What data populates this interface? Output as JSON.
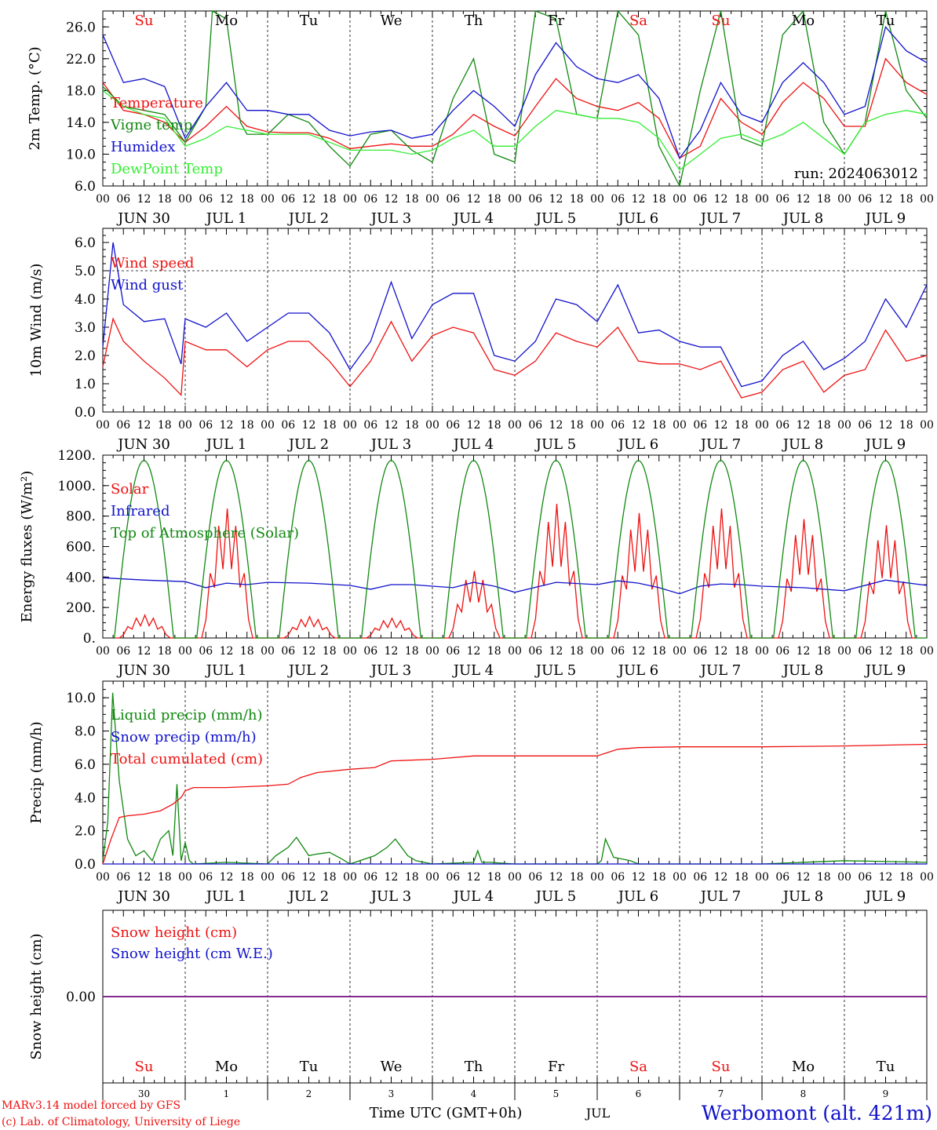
{
  "run_label": "run: 2024063012",
  "hour_ticks": [
    "00",
    "06",
    "12",
    "18"
  ],
  "day_labels": [
    "JUN 30",
    "JUL  1",
    "JUL  2",
    "JUL  3",
    "JUL  4",
    "JUL  5",
    "JUL  6",
    "JUL  7",
    "JUL  8",
    "JUL  9"
  ],
  "weekdays": [
    {
      "label": "Su",
      "color": "#ee1111"
    },
    {
      "label": "Mo",
      "color": "#000000"
    },
    {
      "label": "Tu",
      "color": "#000000"
    },
    {
      "label": "We",
      "color": "#000000"
    },
    {
      "label": "Th",
      "color": "#000000"
    },
    {
      "label": "Fr",
      "color": "#000000"
    },
    {
      "label": "Sa",
      "color": "#ee1111"
    },
    {
      "label": "Su",
      "color": "#ee1111"
    },
    {
      "label": "Mo",
      "color": "#000000"
    },
    {
      "label": "Tu",
      "color": "#000000"
    }
  ],
  "bottom_day_numbers": [
    "30",
    "1",
    "2",
    "3",
    "4",
    "5",
    "6",
    "7",
    "8",
    "9"
  ],
  "footer": {
    "model": "MARv3.14 model forced by GFS",
    "copyright": "(c) Lab. of Climatology, University of Liege",
    "time_axis": "Time UTC (GMT+0h)",
    "month": "JUL",
    "station": "Werbomont (alt. 421m)"
  },
  "colors": {
    "red": "#ee1111",
    "green": "#118811",
    "blue": "#1111cc",
    "lightgreen": "#33ee33",
    "purple": "#882288"
  },
  "chart_data": [
    {
      "id": "temp",
      "type": "line",
      "ylabel": "2m Temp. (°C)",
      "ylim": [
        6,
        28
      ],
      "yticks": [
        "6.0",
        "10.0",
        "14.0",
        "18.0",
        "22.0",
        "26.0"
      ],
      "ytick_values": [
        6,
        10,
        14,
        18,
        22,
        26
      ],
      "x_days": [
        0,
        10
      ],
      "series": [
        {
          "name": "Temperature",
          "color": "#ee1111",
          "x": [
            0,
            0.25,
            0.5,
            0.75,
            1,
            1.25,
            1.5,
            1.75,
            2,
            2.25,
            2.5,
            2.75,
            3,
            3.25,
            3.5,
            3.75,
            4,
            4.25,
            4.5,
            4.75,
            5,
            5.25,
            5.5,
            5.75,
            6,
            6.25,
            6.5,
            6.75,
            7,
            7.25,
            7.5,
            7.75,
            8,
            8.25,
            8.5,
            8.75,
            9,
            9.25,
            9.5,
            9.75,
            10
          ],
          "y": [
            19,
            15.5,
            15,
            14,
            11.5,
            13.5,
            16,
            13.5,
            12.8,
            12.7,
            12.7,
            12,
            10.7,
            11,
            11.3,
            11,
            11,
            12.5,
            15,
            13.5,
            12.3,
            16,
            19.5,
            17,
            16,
            15.5,
            16.5,
            14.5,
            9.5,
            11,
            17,
            14,
            12.5,
            16.5,
            19,
            17,
            13.5,
            13.5,
            22,
            19,
            17.5
          ]
        },
        {
          "name": "Vigne temp",
          "color": "#118811",
          "x": [
            0,
            0.25,
            0.5,
            0.75,
            1,
            1.25,
            1.33,
            1.5,
            1.67,
            1.75,
            2,
            2.25,
            2.5,
            2.75,
            3,
            3.25,
            3.5,
            3.75,
            4,
            4.25,
            4.5,
            4.75,
            5,
            5.25,
            5.5,
            5.75,
            6,
            6.25,
            6.5,
            6.75,
            7,
            7.25,
            7.5,
            7.75,
            8,
            8.25,
            8.5,
            8.75,
            9,
            9.25,
            9.5,
            9.75,
            10
          ],
          "y": [
            18.5,
            16,
            15.5,
            15,
            11.5,
            16,
            28,
            27,
            14,
            12.5,
            12.5,
            15,
            14,
            11,
            8.5,
            12.5,
            13,
            10.5,
            9,
            17,
            22,
            10,
            9,
            28,
            27,
            15,
            14.5,
            28,
            25,
            11,
            6,
            18,
            28,
            12,
            11,
            25,
            28,
            14,
            10,
            14,
            28,
            18,
            14.5
          ]
        },
        {
          "name": "Humidex",
          "color": "#1111cc",
          "x": [
            0,
            0.25,
            0.5,
            0.75,
            1,
            1.25,
            1.5,
            1.75,
            2,
            2.25,
            2.5,
            2.75,
            3,
            3.25,
            3.5,
            3.75,
            4,
            4.25,
            4.5,
            4.75,
            5,
            5.25,
            5.5,
            5.75,
            6,
            6.25,
            6.5,
            6.75,
            7,
            7.25,
            7.5,
            7.75,
            8,
            8.25,
            8.5,
            8.75,
            9,
            9.25,
            9.5,
            9.75,
            10
          ],
          "y": [
            25,
            19,
            19.5,
            18.5,
            12,
            16,
            19,
            15.5,
            15.5,
            15,
            15,
            13,
            12.3,
            12.8,
            13,
            12,
            12.5,
            15.5,
            18,
            16,
            13.5,
            20,
            24,
            21,
            19.5,
            19,
            20,
            17,
            9.5,
            13,
            19,
            15,
            14,
            19,
            21.5,
            19,
            15,
            16,
            26,
            23,
            21.5
          ]
        },
        {
          "name": "DewPoint Temp",
          "color": "#33ee33",
          "x": [
            0,
            0.25,
            0.5,
            0.75,
            1,
            1.25,
            1.5,
            1.75,
            2,
            2.25,
            2.5,
            2.75,
            3,
            3.25,
            3.5,
            3.75,
            4,
            4.25,
            4.5,
            4.75,
            5,
            5.25,
            5.5,
            5.75,
            6,
            6.25,
            6.5,
            6.75,
            7,
            7.25,
            7.5,
            7.75,
            8,
            8.25,
            8.5,
            8.75,
            9,
            9.25,
            9.5,
            9.75,
            10
          ],
          "y": [
            18,
            16,
            15,
            14.5,
            11,
            12,
            13.5,
            13,
            12.5,
            12.5,
            12.5,
            11.5,
            10.5,
            10.5,
            10.5,
            10,
            10.5,
            12,
            13,
            11,
            11,
            13.5,
            15.5,
            15,
            14.5,
            14.5,
            14,
            12,
            8,
            10,
            12,
            12.5,
            11.5,
            12.5,
            14,
            12,
            10,
            14,
            15,
            15.5,
            15
          ]
        }
      ]
    },
    {
      "id": "wind",
      "type": "line",
      "ylabel": "10m Wind (m/s)",
      "ylim": [
        0,
        6.5
      ],
      "yticks": [
        "0.0",
        "1.0",
        "2.0",
        "3.0",
        "4.0",
        "5.0",
        "6.0"
      ],
      "ytick_values": [
        0,
        1,
        2,
        3,
        4,
        5,
        6
      ],
      "ref_line": 5,
      "x_days": [
        0,
        10
      ],
      "series": [
        {
          "name": "Wind speed",
          "color": "#ee1111",
          "x": [
            0,
            0.125,
            0.25,
            0.5,
            0.75,
            0.95,
            1,
            1.25,
            1.5,
            1.75,
            2,
            2.25,
            2.5,
            2.75,
            3,
            3.25,
            3.5,
            3.75,
            4,
            4.25,
            4.5,
            4.75,
            5,
            5.25,
            5.5,
            5.75,
            6,
            6.25,
            6.5,
            6.75,
            7,
            7.25,
            7.5,
            7.75,
            8,
            8.25,
            8.5,
            8.75,
            9,
            9.25,
            9.5,
            9.75,
            10
          ],
          "y": [
            1.6,
            3.3,
            2.5,
            1.8,
            1.2,
            0.6,
            2.5,
            2.2,
            2.2,
            1.6,
            2.2,
            2.5,
            2.5,
            1.8,
            0.9,
            1.8,
            3.2,
            1.8,
            2.7,
            3,
            2.8,
            1.5,
            1.3,
            1.8,
            2.8,
            2.5,
            2.3,
            3,
            1.8,
            1.7,
            1.7,
            1.5,
            1.8,
            0.5,
            0.7,
            1.5,
            1.8,
            0.7,
            1.3,
            1.5,
            2.9,
            1.8,
            2.0
          ]
        },
        {
          "name": "Wind gust",
          "color": "#1111cc",
          "x": [
            0,
            0.125,
            0.25,
            0.5,
            0.75,
            0.95,
            1,
            1.25,
            1.5,
            1.75,
            2,
            2.25,
            2.5,
            2.75,
            3,
            3.25,
            3.5,
            3.75,
            4,
            4.25,
            4.5,
            4.75,
            5,
            5.25,
            5.5,
            5.75,
            6,
            6.25,
            6.5,
            6.75,
            7,
            7.25,
            7.5,
            7.75,
            8,
            8.25,
            8.5,
            8.75,
            9,
            9.25,
            9.5,
            9.75,
            10
          ],
          "y": [
            2.3,
            6.0,
            3.8,
            3.2,
            3.3,
            1.7,
            3.3,
            3,
            3.5,
            2.5,
            3,
            3.5,
            3.5,
            2.8,
            1.5,
            2.5,
            4.6,
            2.6,
            3.8,
            4.2,
            4.2,
            2.0,
            1.8,
            2.5,
            4.0,
            3.8,
            3.2,
            4.5,
            2.8,
            2.9,
            2.5,
            2.3,
            2.3,
            0.9,
            1.1,
            2.0,
            2.5,
            1.5,
            1.9,
            2.5,
            4.0,
            3.0,
            4.5
          ]
        }
      ]
    },
    {
      "id": "energy",
      "type": "line",
      "ylabel": "Energy fluxes (W/m²)",
      "ylim": [
        0,
        1200
      ],
      "yticks": [
        "0.",
        "200.",
        "400.",
        "600.",
        "800.",
        "1000.",
        "1200."
      ],
      "ytick_values": [
        0,
        200,
        400,
        600,
        800,
        1000,
        1200
      ],
      "x_days": [
        0,
        10
      ],
      "toa_peak": 1165,
      "toa_daylight": [
        0.14,
        0.86
      ],
      "solar_peaks": [
        150,
        850,
        140,
        130,
        440,
        880,
        820,
        850,
        780,
        740
      ],
      "series": [
        {
          "name": "Solar",
          "color": "#ee1111"
        },
        {
          "name": "Infrared",
          "color": "#1111cc",
          "x": [
            0,
            0.5,
            1,
            1.25,
            1.5,
            1.75,
            2,
            2.5,
            3,
            3.25,
            3.5,
            3.75,
            4,
            4.25,
            4.5,
            4.75,
            5,
            5.5,
            6,
            6.25,
            6.5,
            6.75,
            7,
            7.25,
            7.5,
            7.75,
            8,
            8.5,
            9,
            9.5,
            10
          ],
          "y": [
            395,
            380,
            370,
            330,
            360,
            350,
            365,
            360,
            345,
            320,
            350,
            350,
            340,
            330,
            365,
            340,
            300,
            365,
            350,
            375,
            360,
            330,
            290,
            340,
            355,
            350,
            340,
            330,
            310,
            380,
            345
          ]
        },
        {
          "name": "Top of Atmosphere (Solar)",
          "color": "#118811"
        }
      ]
    },
    {
      "id": "precip",
      "type": "line",
      "ylabel": "Precip (mm/h)",
      "ylim": [
        0,
        11
      ],
      "yticks": [
        "0.0",
        "2.0",
        "4.0",
        "6.0",
        "8.0",
        "10.0"
      ],
      "ytick_values": [
        0,
        2,
        4,
        6,
        8,
        10
      ],
      "x_days": [
        0,
        10
      ],
      "series": [
        {
          "name": "Liquid precip (mm/h)",
          "color": "#118811",
          "x": [
            0,
            0.06,
            0.12,
            0.2,
            0.3,
            0.4,
            0.5,
            0.6,
            0.7,
            0.8,
            0.85,
            0.9,
            0.95,
            1,
            1.05,
            1.1,
            1.5,
            2,
            2.1,
            2.25,
            2.35,
            2.5,
            2.6,
            2.75,
            2.9,
            3,
            3.3,
            3.45,
            3.55,
            3.7,
            3.8,
            4,
            4.5,
            4.55,
            4.6,
            4.7,
            5,
            6,
            6.05,
            6.1,
            6.2,
            6.3,
            6.4,
            6.5,
            7,
            8,
            9,
            10
          ],
          "y": [
            0.2,
            2.5,
            10.3,
            5,
            1.5,
            0.5,
            0.8,
            0.2,
            1.5,
            2,
            0.5,
            4.8,
            0.2,
            1.3,
            0.2,
            0,
            0.1,
            0,
            0.5,
            1.0,
            1.6,
            0.5,
            0.6,
            0.7,
            0.3,
            0,
            0.5,
            1.0,
            1.5,
            0.5,
            0.2,
            0,
            0.1,
            0.8,
            0.1,
            0.1,
            0,
            0,
            0.2,
            1.5,
            0.4,
            0.3,
            0.2,
            0,
            0,
            0,
            0.2,
            0.1
          ]
        },
        {
          "name": "Snow precip (mm/h)",
          "color": "#1111cc",
          "x": [
            0,
            10
          ],
          "y": [
            0,
            0
          ]
        },
        {
          "name": "Total cumulated (cm)",
          "color": "#ee1111",
          "x": [
            0,
            0.1,
            0.2,
            0.3,
            0.5,
            0.7,
            0.85,
            0.95,
            1,
            1.1,
            1.5,
            2,
            2.25,
            2.4,
            2.6,
            3,
            3.3,
            3.5,
            4,
            4.5,
            5,
            6,
            6.25,
            6.5,
            7,
            8,
            9,
            10
          ],
          "y": [
            0,
            1.5,
            2.8,
            2.9,
            3.0,
            3.2,
            3.6,
            4.0,
            4.4,
            4.6,
            4.6,
            4.7,
            4.8,
            5.2,
            5.5,
            5.7,
            5.8,
            6.2,
            6.3,
            6.5,
            6.5,
            6.5,
            6.9,
            7.0,
            7.05,
            7.05,
            7.1,
            7.2
          ]
        }
      ]
    },
    {
      "id": "snow",
      "type": "line",
      "ylabel": "Snow height (cm)",
      "ylim": [
        -1,
        1
      ],
      "yticks": [
        "0.00"
      ],
      "ytick_values": [
        0
      ],
      "x_days": [
        0,
        10
      ],
      "series": [
        {
          "name": "Snow height (cm)",
          "color": "#ee1111",
          "x": [
            0,
            10
          ],
          "y": [
            0,
            0
          ]
        },
        {
          "name": "Snow height (cm W.E.)",
          "color": "#1111cc",
          "x": [
            0,
            10
          ],
          "y": [
            0,
            0
          ]
        }
      ]
    }
  ]
}
